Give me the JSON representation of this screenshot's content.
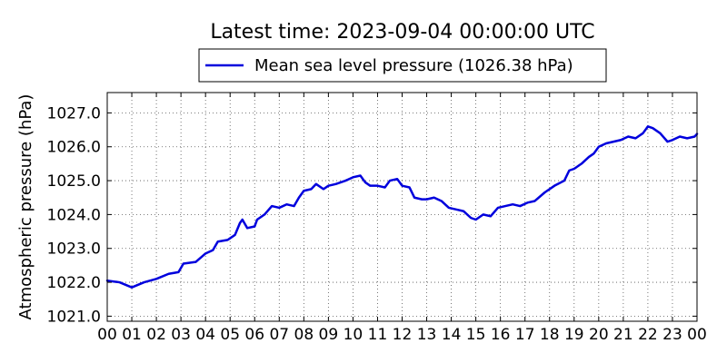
{
  "chart_data": {
    "type": "line",
    "title": "Latest time: 2023-09-04 00:00:00 UTC",
    "xlabel": "",
    "ylabel": "Atmospheric pressure (hPa)",
    "x_tick_labels": [
      "00",
      "01",
      "02",
      "03",
      "04",
      "05",
      "06",
      "07",
      "08",
      "09",
      "10",
      "11",
      "12",
      "13",
      "14",
      "15",
      "16",
      "17",
      "18",
      "19",
      "20",
      "21",
      "22",
      "23",
      "00"
    ],
    "y_ticks": [
      1021.0,
      1022.0,
      1023.0,
      1024.0,
      1025.0,
      1026.0,
      1027.0
    ],
    "y_tick_labels": [
      "1021.0",
      "1022.0",
      "1023.0",
      "1024.0",
      "1025.0",
      "1026.0",
      "1027.0"
    ],
    "xlim": [
      0,
      24
    ],
    "ylim": [
      1020.85,
      1027.6
    ],
    "grid": true,
    "legend_position": "top-center",
    "colors": {
      "series": "#0000dd",
      "axes": "#000000",
      "grid": "#555555"
    },
    "series": [
      {
        "name": "Mean sea level pressure (1026.38 hPa)",
        "x": [
          0,
          0.5,
          1.0,
          1.5,
          2.0,
          2.5,
          2.9,
          3.1,
          3.6,
          4.0,
          4.3,
          4.5,
          4.9,
          5.2,
          5.4,
          5.5,
          5.7,
          6.0,
          6.1,
          6.4,
          6.7,
          7.0,
          7.3,
          7.6,
          7.8,
          8.0,
          8.3,
          8.5,
          8.8,
          9.0,
          9.3,
          9.7,
          10.0,
          10.3,
          10.5,
          10.7,
          11.0,
          11.3,
          11.5,
          11.8,
          12.0,
          12.3,
          12.5,
          12.8,
          13.0,
          13.3,
          13.6,
          13.9,
          14.2,
          14.5,
          14.8,
          15.0,
          15.3,
          15.6,
          15.9,
          16.2,
          16.5,
          16.8,
          17.1,
          17.4,
          17.8,
          18.2,
          18.6,
          18.8,
          19.0,
          19.3,
          19.6,
          19.8,
          20.0,
          20.3,
          20.6,
          20.9,
          21.2,
          21.5,
          21.8,
          22.0,
          22.2,
          22.5,
          22.8,
          23.0,
          23.3,
          23.6,
          23.9,
          24.0
        ],
        "y": [
          1022.05,
          1022.0,
          1021.85,
          1022.0,
          1022.1,
          1022.25,
          1022.3,
          1022.55,
          1022.6,
          1022.85,
          1022.95,
          1023.2,
          1023.25,
          1023.4,
          1023.75,
          1023.85,
          1023.6,
          1023.65,
          1023.85,
          1024.0,
          1024.25,
          1024.2,
          1024.3,
          1024.25,
          1024.5,
          1024.7,
          1024.75,
          1024.9,
          1024.75,
          1024.85,
          1024.9,
          1025.0,
          1025.1,
          1025.15,
          1024.95,
          1024.85,
          1024.85,
          1024.8,
          1025.0,
          1025.05,
          1024.85,
          1024.8,
          1024.5,
          1024.45,
          1024.45,
          1024.5,
          1024.4,
          1024.2,
          1024.15,
          1024.1,
          1023.9,
          1023.85,
          1024.0,
          1023.95,
          1024.2,
          1024.25,
          1024.3,
          1024.25,
          1024.35,
          1024.4,
          1024.65,
          1024.85,
          1025.0,
          1025.3,
          1025.35,
          1025.5,
          1025.7,
          1025.8,
          1026.0,
          1026.1,
          1026.15,
          1026.2,
          1026.3,
          1026.25,
          1026.4,
          1026.6,
          1026.55,
          1026.4,
          1026.15,
          1026.2,
          1026.3,
          1026.25,
          1026.3,
          1026.38
        ]
      }
    ]
  }
}
